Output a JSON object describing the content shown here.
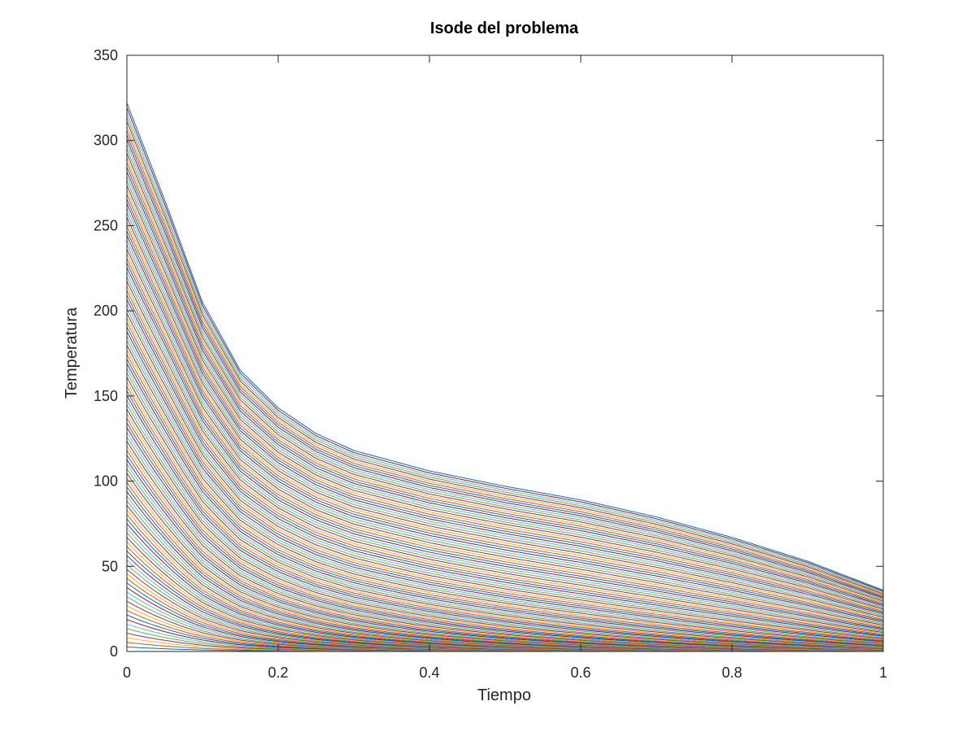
{
  "chart_data": {
    "type": "line",
    "title": "Isode del problema",
    "xlabel": "Tiempo",
    "ylabel": "Temperatura",
    "xlim": [
      0,
      1
    ],
    "ylim": [
      0,
      350
    ],
    "xticks": [
      0,
      0.2,
      0.4,
      0.6,
      0.8,
      1
    ],
    "xtick_labels": [
      "0",
      "0.2",
      "0.4",
      "0.6",
      "0.8",
      "1"
    ],
    "yticks": [
      0,
      50,
      100,
      150,
      200,
      250,
      300,
      350
    ],
    "ytick_labels": [
      "0",
      "50",
      "100",
      "150",
      "200",
      "250",
      "300",
      "350"
    ],
    "grid": false,
    "legend": "none",
    "series_count": 120,
    "series_colors": [
      "#0072bd",
      "#d95319",
      "#edb120",
      "#7e2f8e",
      "#77ac30",
      "#4dbeee",
      "#a2142f"
    ],
    "envelope": {
      "x": [
        0,
        0.05,
        0.1,
        0.15,
        0.2,
        0.25,
        0.3,
        0.4,
        0.5,
        0.6,
        0.7,
        0.8,
        0.9,
        1.0
      ],
      "y": [
        322,
        265,
        205,
        165,
        143,
        128,
        118,
        106,
        97,
        89,
        79,
        67,
        53,
        36
      ]
    }
  }
}
